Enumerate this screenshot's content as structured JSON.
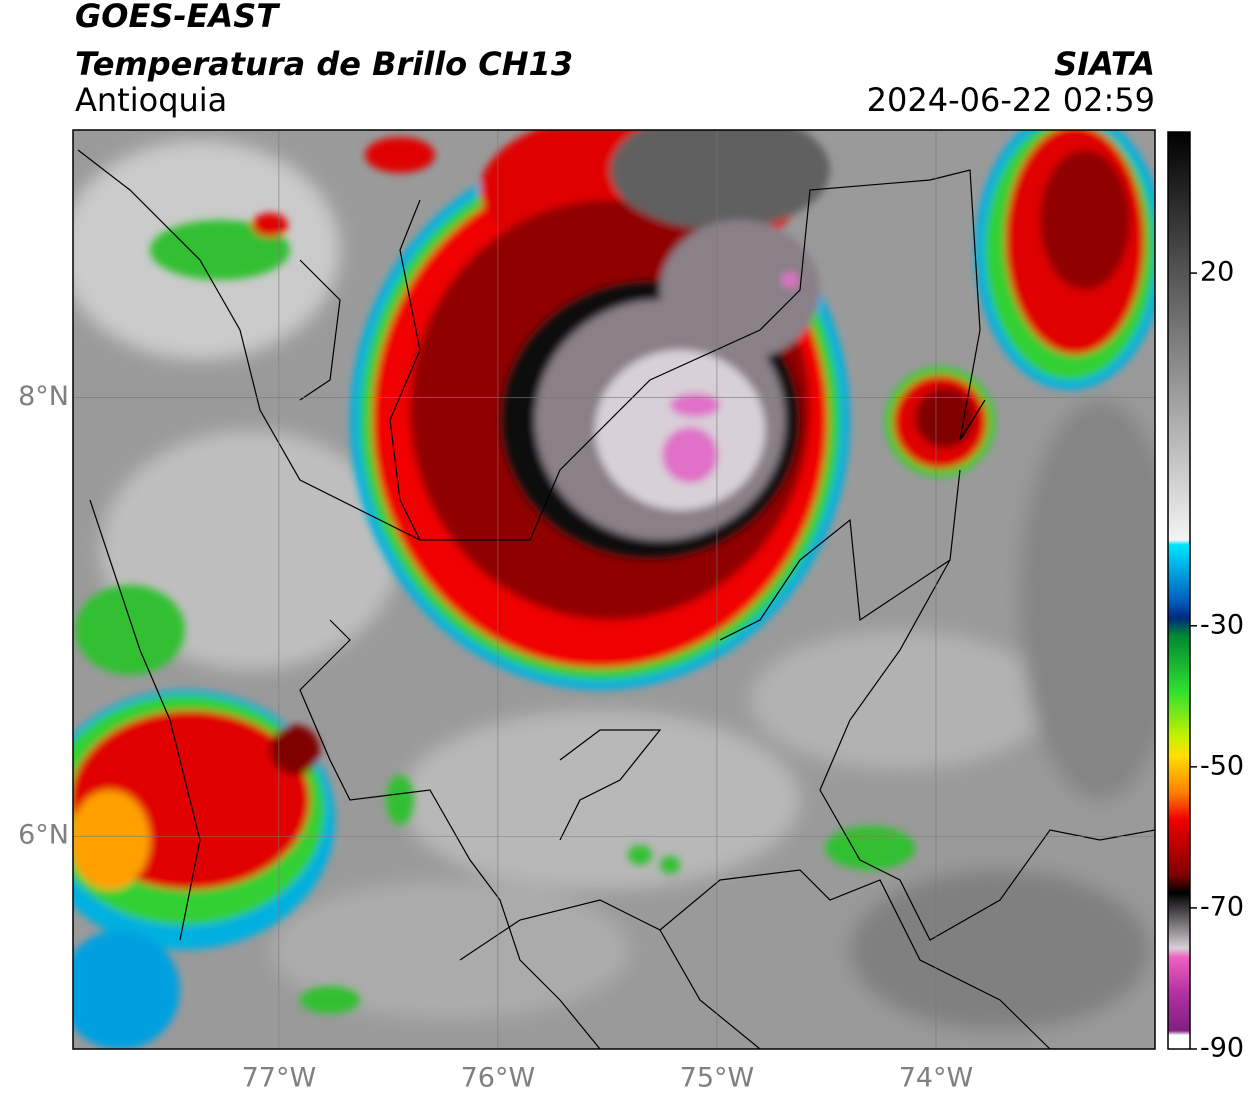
{
  "header": {
    "source": "GOES-EAST",
    "product": "Temperatura de Brillo CH13",
    "region": "Antioquia",
    "agency": "SIATA",
    "datetime": "2024-06-22 02:59"
  },
  "map": {
    "lonlim": [
      -77.94,
      -73.0
    ],
    "latlim": [
      5.03,
      9.22
    ],
    "lonticks": [
      {
        "value": -77,
        "label": "77°W"
      },
      {
        "value": -76,
        "label": "76°W"
      },
      {
        "value": -75,
        "label": "75°W"
      },
      {
        "value": -74,
        "label": "74°W"
      }
    ],
    "latticks": [
      {
        "value": 8,
        "label": "8°N"
      },
      {
        "value": 6,
        "label": "6°N"
      }
    ],
    "grid": true
  },
  "colorbar": {
    "lim": [
      -90,
      40
    ],
    "ticks": [
      20,
      -30,
      -50,
      -70,
      -90
    ]
  }
}
